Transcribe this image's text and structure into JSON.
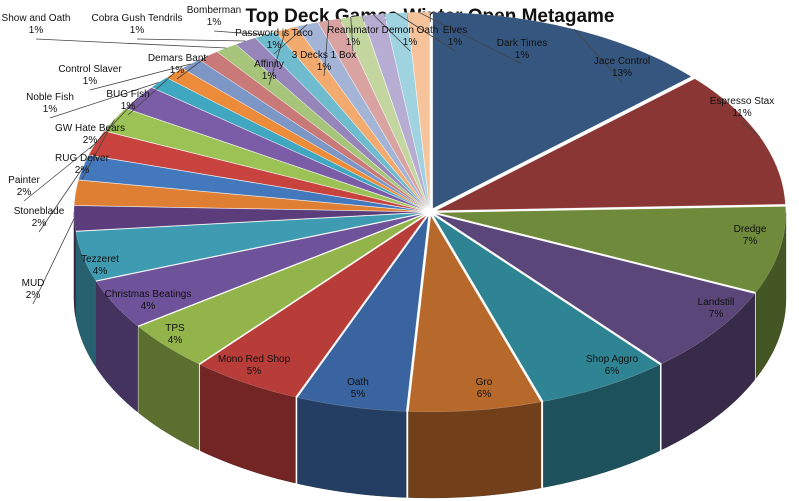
{
  "chart_data": {
    "type": "pie",
    "style": "3d-exploded-depth",
    "title": "Top Deck Games Winter Open Metagame",
    "legend": "none",
    "slices": [
      {
        "name": "Jace Control",
        "label": "13%",
        "value": 13,
        "color": "#35567e"
      },
      {
        "name": "Espresso Stax",
        "label": "11%",
        "value": 11,
        "color": "#8a3634"
      },
      {
        "name": "Dredge",
        "label": "7%",
        "value": 7,
        "color": "#6e8a3a"
      },
      {
        "name": "Landstill",
        "label": "7%",
        "value": 7,
        "color": "#5a4678"
      },
      {
        "name": "Shop Aggro",
        "label": "6%",
        "value": 6,
        "color": "#2f8494"
      },
      {
        "name": "Gro",
        "label": "6%",
        "value": 6,
        "color": "#b7682b"
      },
      {
        "name": "Oath",
        "label": "5%",
        "value": 5,
        "color": "#3a64a0"
      },
      {
        "name": "Mono Red Shop",
        "label": "5%",
        "value": 5,
        "color": "#b83c38"
      },
      {
        "name": "TPS",
        "label": "4%",
        "value": 4,
        "color": "#93b34b"
      },
      {
        "name": "Christmas Beatings",
        "label": "4%",
        "value": 4,
        "color": "#6e529a"
      },
      {
        "name": "Tezzeret",
        "label": "4%",
        "value": 4,
        "color": "#3f9bb1"
      },
      {
        "name": "MUD",
        "label": "2%",
        "value": 2,
        "color": "#5c3d7c"
      },
      {
        "name": "",
        "label": "",
        "value": 2,
        "color": "#de7f34"
      },
      {
        "name": "Stoneblade",
        "label": "2%",
        "value": 2,
        "color": "#4478bd"
      },
      {
        "name": "Painter",
        "label": "2%",
        "value": 2,
        "color": "#c8433e"
      },
      {
        "name": "RUG Delver",
        "label": "2%",
        "value": 2,
        "color": "#9cc256"
      },
      {
        "name": "GW Hate Bears",
        "label": "2%",
        "value": 2,
        "color": "#7a5da6"
      },
      {
        "name": "Noble Fish",
        "label": "1%",
        "value": 1,
        "color": "#3fa7c0"
      },
      {
        "name": "BUG Fish",
        "label": "1%",
        "value": 1,
        "color": "#ec8c3a"
      },
      {
        "name": "Control Slaver",
        "label": "1%",
        "value": 1,
        "color": "#7c96c6"
      },
      {
        "name": "Demars Bant",
        "label": "1%",
        "value": 1,
        "color": "#c97a78"
      },
      {
        "name": "Show and Oath",
        "label": "1%",
        "value": 1,
        "color": "#a6c47a"
      },
      {
        "name": "Cobra Gush Tendrils",
        "label": "1%",
        "value": 1,
        "color": "#9585b8"
      },
      {
        "name": "Bomberman",
        "label": "1%",
        "value": 1,
        "color": "#6fbccf"
      },
      {
        "name": "Affinity",
        "label": "1%",
        "value": 1,
        "color": "#f2aa6e"
      },
      {
        "name": "Password is Taco",
        "label": "1%",
        "value": 1,
        "color": "#a4b4d6"
      },
      {
        "name": "3 Decks 1 Box",
        "label": "1%",
        "value": 1,
        "color": "#d9a3a2"
      },
      {
        "name": "Reanimator",
        "label": "1%",
        "value": 1,
        "color": "#c4d6a0"
      },
      {
        "name": "Demon Oath",
        "label": "1%",
        "value": 1,
        "color": "#b7add3"
      },
      {
        "name": "Elves",
        "label": "1%",
        "value": 1,
        "color": "#9fd3e0"
      },
      {
        "name": "Dark Times",
        "label": "1%",
        "value": 1,
        "color": "#f7c39b"
      }
    ]
  }
}
